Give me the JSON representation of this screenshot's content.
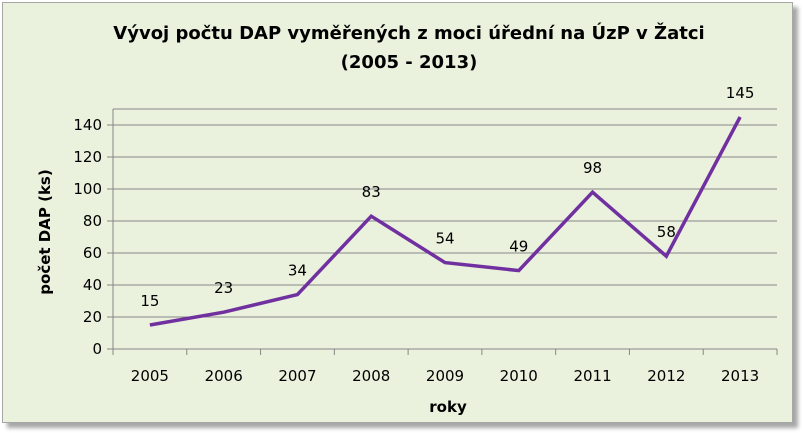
{
  "chart_data": {
    "type": "line",
    "title_line1": "Vývoj počtu DAP vyměřených z moci úřední na ÚzP v Žatci",
    "title_line2": "(2005 - 2013)",
    "xlabel": "roky",
    "ylabel": "počet DAP (ks)",
    "categories": [
      "2005",
      "2006",
      "2007",
      "2008",
      "2009",
      "2010",
      "2011",
      "2012",
      "2013"
    ],
    "series": [
      {
        "values": [
          15,
          23,
          34,
          83,
          54,
          49,
          98,
          58,
          145
        ],
        "color": "#7030a0"
      }
    ],
    "data_labels": [
      "15",
      "23",
      "34",
      "83",
      "54",
      "49",
      "98",
      "58",
      "145"
    ],
    "ylim": [
      0,
      150
    ],
    "yticks": [
      0,
      20,
      40,
      60,
      80,
      100,
      120,
      140
    ],
    "ytick_labels": [
      "0",
      "20",
      "40",
      "60",
      "80",
      "100",
      "120",
      "140"
    ],
    "grid": "horizontal",
    "legend": "none",
    "colors": {
      "background": "#eaf1dd",
      "gridline": "#868686",
      "axis": "#868686"
    }
  }
}
